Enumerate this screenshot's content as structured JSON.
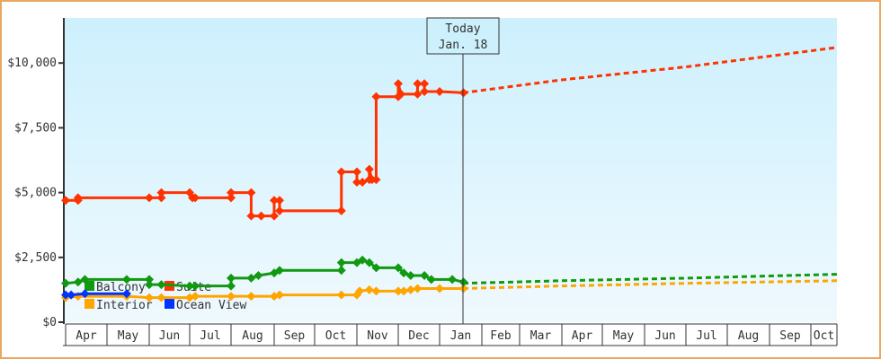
{
  "chart_data": {
    "type": "line",
    "title": "",
    "xlabel": "",
    "ylabel": "",
    "ylim": [
      0,
      11500
    ],
    "y_ticks": [
      {
        "value": 0,
        "label": "$0"
      },
      {
        "value": 2500,
        "label": "$2,500"
      },
      {
        "value": 5000,
        "label": "$5,000"
      },
      {
        "value": 7500,
        "label": "$7,500"
      },
      {
        "value": 10000,
        "label": "$10,000"
      }
    ],
    "x_ticks": [
      "Apr",
      "May",
      "Jun",
      "Jul",
      "Aug",
      "Sep",
      "Oct",
      "Nov",
      "Dec",
      "Jan",
      "Feb",
      "Mar",
      "Apr",
      "May",
      "Jun",
      "Jul",
      "Aug",
      "Sep",
      "Oct"
    ],
    "today_marker": {
      "line1": "Today",
      "line2": "Jan. 18"
    },
    "grid": false,
    "legend": [
      {
        "name": "Balcony",
        "color": "#119911"
      },
      {
        "name": "Suite",
        "color": "#ff3300"
      },
      {
        "name": "Interior",
        "color": "#ffa500"
      },
      {
        "name": "Ocean View",
        "color": "#0033ff"
      }
    ],
    "series": [
      {
        "name": "Suite",
        "color": "#ff3300",
        "history": [
          [
            "Apr 1",
            4700
          ],
          [
            "Apr 10",
            4700
          ],
          [
            "Apr 10",
            4800
          ],
          [
            "Jun 1",
            4800
          ],
          [
            "Jun 10",
            4800
          ],
          [
            "Jun 10",
            5000
          ],
          [
            "Jul 1",
            5000
          ],
          [
            "Jul 3",
            4800
          ],
          [
            "Jul 5",
            4800
          ],
          [
            "Aug 1",
            4800
          ],
          [
            "Aug 1",
            5000
          ],
          [
            "Aug 15",
            5000
          ],
          [
            "Aug 15",
            4100
          ],
          [
            "Aug 22",
            4100
          ],
          [
            "Sep 1",
            4100
          ],
          [
            "Sep 1",
            4700
          ],
          [
            "Sep 5",
            4700
          ],
          [
            "Sep 5",
            4300
          ],
          [
            "Oct 20",
            4300
          ],
          [
            "Oct 20",
            5800
          ],
          [
            "Nov 1",
            5800
          ],
          [
            "Nov 1",
            5400
          ],
          [
            "Nov 5",
            5400
          ],
          [
            "Nov 10",
            5500
          ],
          [
            "Nov 10",
            5900
          ],
          [
            "Nov 12",
            5500
          ],
          [
            "Nov 15",
            5500
          ],
          [
            "Nov 15",
            8700
          ],
          [
            "Dec 1",
            8700
          ],
          [
            "Dec 1",
            9200
          ],
          [
            "Dec 3",
            8800
          ],
          [
            "Dec 15",
            8800
          ],
          [
            "Dec 15",
            9200
          ],
          [
            "Dec 20",
            9200
          ],
          [
            "Dec 20",
            8900
          ],
          [
            "Jan 1",
            8900
          ],
          [
            "Jan 18",
            8850
          ]
        ],
        "forecast": [
          [
            "Jan 18",
            8850
          ],
          [
            "Apr",
            9350
          ],
          [
            "Jul",
            9850
          ],
          [
            "Oct",
            10600
          ]
        ]
      },
      {
        "name": "Balcony",
        "color": "#119911",
        "history": [
          [
            "Apr 1",
            1500
          ],
          [
            "Apr 10",
            1550
          ],
          [
            "Apr 15",
            1650
          ],
          [
            "May 15",
            1650
          ],
          [
            "Jun 1",
            1650
          ],
          [
            "Jun 1",
            1450
          ],
          [
            "Jun 10",
            1450
          ],
          [
            "Jul 1",
            1400
          ],
          [
            "Jul 5",
            1400
          ],
          [
            "Aug 1",
            1400
          ],
          [
            "Aug 1",
            1700
          ],
          [
            "Aug 15",
            1700
          ],
          [
            "Aug 20",
            1800
          ],
          [
            "Sep 1",
            1900
          ],
          [
            "Sep 5",
            2000
          ],
          [
            "Oct 20",
            2000
          ],
          [
            "Oct 20",
            2300
          ],
          [
            "Nov 1",
            2300
          ],
          [
            "Nov 5",
            2400
          ],
          [
            "Nov 10",
            2300
          ],
          [
            "Nov 15",
            2100
          ],
          [
            "Dec 1",
            2100
          ],
          [
            "Dec 5",
            1900
          ],
          [
            "Dec 10",
            1800
          ],
          [
            "Dec 20",
            1800
          ],
          [
            "Dec 25",
            1650
          ],
          [
            "Jan 10",
            1650
          ],
          [
            "Jan 18",
            1550
          ]
        ],
        "forecast": [
          [
            "Jan 18",
            1500
          ],
          [
            "Apr",
            1600
          ],
          [
            "Jul",
            1700
          ],
          [
            "Oct",
            1850
          ]
        ]
      },
      {
        "name": "Interior",
        "color": "#ffa500",
        "history": [
          [
            "Apr 1",
            950
          ],
          [
            "Apr 10",
            1000
          ],
          [
            "May 15",
            1000
          ],
          [
            "Jun 1",
            950
          ],
          [
            "Jun 10",
            950
          ],
          [
            "Jul 1",
            950
          ],
          [
            "Jul 5",
            1000
          ],
          [
            "Aug 1",
            1000
          ],
          [
            "Aug 15",
            1000
          ],
          [
            "Sep 1",
            1000
          ],
          [
            "Sep 5",
            1050
          ],
          [
            "Oct 20",
            1050
          ],
          [
            "Nov 1",
            1050
          ],
          [
            "Nov 3",
            1200
          ],
          [
            "Nov 10",
            1250
          ],
          [
            "Nov 15",
            1200
          ],
          [
            "Dec 1",
            1200
          ],
          [
            "Dec 5",
            1200
          ],
          [
            "Dec 10",
            1250
          ],
          [
            "Dec 15",
            1300
          ],
          [
            "Jan 1",
            1300
          ],
          [
            "Jan 18",
            1300
          ]
        ],
        "forecast": [
          [
            "Jan 18",
            1300
          ],
          [
            "Apr",
            1400
          ],
          [
            "Jul",
            1500
          ],
          [
            "Oct",
            1600
          ]
        ]
      },
      {
        "name": "Ocean View",
        "color": "#0033ff",
        "history": [
          [
            "Apr 1",
            1050
          ],
          [
            "Apr 5",
            1050
          ],
          [
            "Apr 15",
            1100
          ],
          [
            "May 15",
            1100
          ]
        ],
        "forecast": []
      }
    ]
  }
}
